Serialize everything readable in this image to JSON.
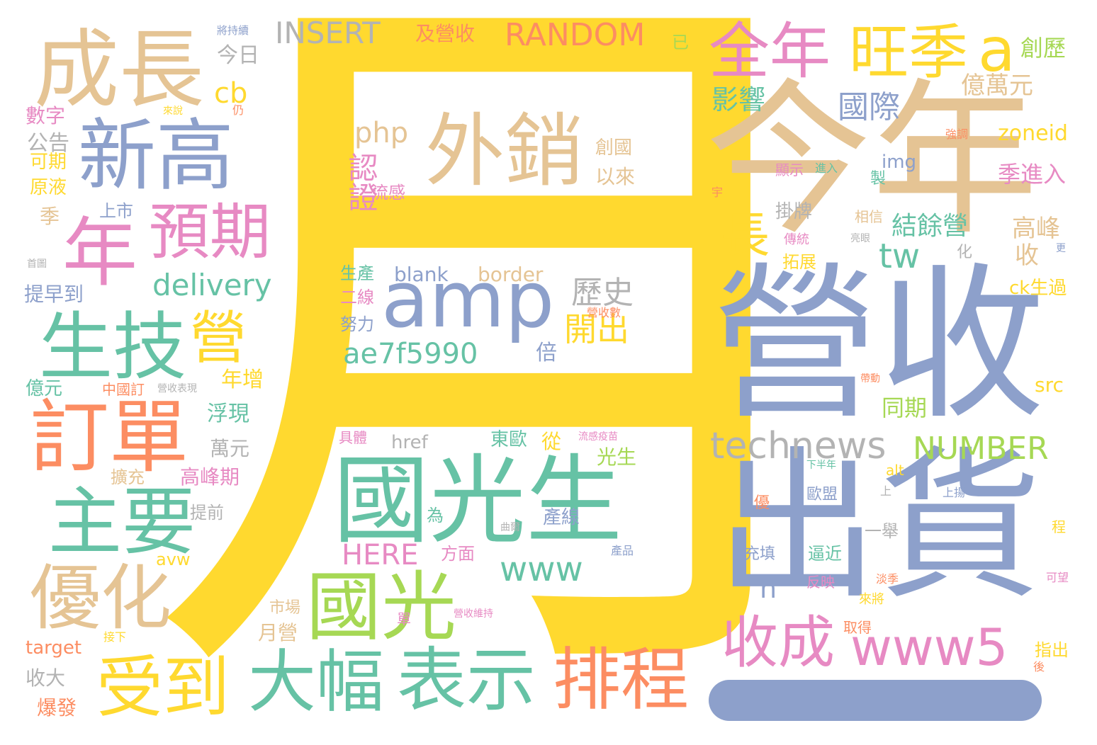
{
  "wordcloud": {
    "palette": {
      "yellow": "#ffd92f",
      "tan": "#e5c494",
      "blue": "#8da0cb",
      "pink": "#e78ac3",
      "green": "#66c2a5",
      "orange": "#fc8d62",
      "lime": "#a6d854",
      "gray": "#b3b3b3"
    },
    "words": [
      {
        "text": "月",
        "color": "yellow"
      },
      {
        "text": "今年",
        "color": "tan"
      },
      {
        "text": "營收",
        "color": "blue"
      },
      {
        "text": "出貨",
        "color": "blue"
      },
      {
        "text": "國光生",
        "color": "green"
      },
      {
        "text": "成長",
        "color": "tan"
      },
      {
        "text": "新高",
        "color": "blue"
      },
      {
        "text": "外銷",
        "color": "tan"
      },
      {
        "text": "amp",
        "color": "blue"
      },
      {
        "text": "國光",
        "color": "lime"
      },
      {
        "text": "表示",
        "color": "green"
      },
      {
        "text": "大幅",
        "color": "green"
      },
      {
        "text": "受到",
        "color": "yellow"
      },
      {
        "text": "排程",
        "color": "orange"
      },
      {
        "text": "訂單",
        "color": "orange"
      },
      {
        "text": "主要",
        "color": "green"
      },
      {
        "text": "優化",
        "color": "tan"
      },
      {
        "text": "生技",
        "color": "green"
      },
      {
        "text": "年",
        "color": "pink"
      },
      {
        "text": "預期",
        "color": "pink"
      },
      {
        "text": "全年",
        "color": "pink"
      },
      {
        "text": "旺季",
        "color": "yellow"
      },
      {
        "text": "a",
        "color": "yellow"
      },
      {
        "text": "收成",
        "color": "pink"
      },
      {
        "text": "www5",
        "color": "pink"
      },
      {
        "text": "technews",
        "color": "gray"
      },
      {
        "text": "NUMBER",
        "color": "lime"
      },
      {
        "text": "RANDOM",
        "color": "orange"
      },
      {
        "text": "INSERT",
        "color": "gray"
      },
      {
        "text": "delivery",
        "color": "green"
      },
      {
        "text": "www",
        "color": "green"
      },
      {
        "text": "ae7f5990",
        "color": "green"
      },
      {
        "text": "HERE",
        "color": "pink"
      },
      {
        "text": "php",
        "color": "tan"
      },
      {
        "text": "國際",
        "color": "blue"
      },
      {
        "text": "tw",
        "color": "green"
      },
      {
        "text": "長",
        "color": "yellow"
      },
      {
        "text": "營",
        "color": "yellow"
      },
      {
        "text": "認證",
        "color": "pink"
      },
      {
        "text": "歷史",
        "color": "gray"
      },
      {
        "text": "開出",
        "color": "yellow"
      },
      {
        "text": "cb",
        "color": "yellow"
      },
      {
        "text": "影響",
        "color": "green"
      },
      {
        "text": "億萬元",
        "color": "tan"
      },
      {
        "text": "結餘營",
        "color": "green"
      },
      {
        "text": "高峰",
        "color": "tan"
      },
      {
        "text": "收",
        "color": "tan"
      },
      {
        "text": "zoneid",
        "color": "yellow"
      },
      {
        "text": "季進入",
        "color": "pink"
      },
      {
        "text": "創歷",
        "color": "lime"
      },
      {
        "text": "n",
        "color": "blue"
      },
      {
        "text": "同期",
        "color": "lime"
      },
      {
        "text": "src",
        "color": "yellow"
      },
      {
        "text": "及營收",
        "color": "orange"
      },
      {
        "text": "今日",
        "color": "gray"
      },
      {
        "text": "將持續",
        "color": "blue"
      },
      {
        "text": "已",
        "color": "lime"
      },
      {
        "text": "數字",
        "color": "pink"
      },
      {
        "text": "公告",
        "color": "gray"
      },
      {
        "text": "可期",
        "color": "yellow"
      },
      {
        "text": "原液",
        "color": "yellow"
      },
      {
        "text": "季",
        "color": "tan"
      },
      {
        "text": "首圖",
        "color": "gray"
      },
      {
        "text": "提早到",
        "color": "blue"
      },
      {
        "text": "上市",
        "color": "blue"
      },
      {
        "text": "年增",
        "color": "yellow"
      },
      {
        "text": "浮現",
        "color": "green"
      },
      {
        "text": "萬元",
        "color": "gray"
      },
      {
        "text": "億元",
        "color": "green"
      },
      {
        "text": "中國訂",
        "color": "orange"
      },
      {
        "text": "營收表現",
        "color": "gray"
      },
      {
        "text": "高峰期",
        "color": "pink"
      },
      {
        "text": "擴充",
        "color": "tan"
      },
      {
        "text": "提前",
        "color": "gray"
      },
      {
        "text": "avw",
        "color": "yellow"
      },
      {
        "text": "target",
        "color": "orange"
      },
      {
        "text": "收大",
        "color": "gray"
      },
      {
        "text": "爆發",
        "color": "orange"
      },
      {
        "text": "接下",
        "color": "yellow"
      },
      {
        "text": "月營",
        "color": "tan"
      },
      {
        "text": "市場",
        "color": "tan"
      },
      {
        "text": "單",
        "color": "pink"
      },
      {
        "text": "營收維持",
        "color": "pink"
      },
      {
        "text": "曲爾",
        "color": "gray"
      },
      {
        "text": "產品",
        "color": "blue"
      },
      {
        "text": "產線",
        "color": "blue"
      },
      {
        "text": "方面",
        "color": "pink"
      },
      {
        "text": "為",
        "color": "green"
      },
      {
        "text": "光生",
        "color": "lime"
      },
      {
        "text": "從",
        "color": "yellow"
      },
      {
        "text": "東歐",
        "color": "green"
      },
      {
        "text": "流感疫苗",
        "color": "pink"
      },
      {
        "text": "具體",
        "color": "pink"
      },
      {
        "text": "href",
        "color": "gray"
      },
      {
        "text": "倍",
        "color": "blue"
      },
      {
        "text": "努力",
        "color": "blue"
      },
      {
        "text": "營收數",
        "color": "orange"
      },
      {
        "text": "二線",
        "color": "pink"
      },
      {
        "text": "生產",
        "color": "green"
      },
      {
        "text": "blank",
        "color": "blue"
      },
      {
        "text": "border",
        "color": "tan"
      },
      {
        "text": "流感",
        "color": "pink"
      },
      {
        "text": "創國",
        "color": "tan"
      },
      {
        "text": "以來",
        "color": "tan"
      },
      {
        "text": "掛牌",
        "color": "gray"
      },
      {
        "text": "傳統",
        "color": "pink"
      },
      {
        "text": "拓展",
        "color": "yellow"
      },
      {
        "text": "img",
        "color": "blue"
      },
      {
        "text": "顯示",
        "color": "pink"
      },
      {
        "text": "進入",
        "color": "green"
      },
      {
        "text": "強調",
        "color": "orange"
      },
      {
        "text": "製",
        "color": "green"
      },
      {
        "text": "相信",
        "color": "tan"
      },
      {
        "text": "亮眼",
        "color": "gray"
      },
      {
        "text": "化",
        "color": "gray"
      },
      {
        "text": "更",
        "color": "blue"
      },
      {
        "text": "ck生過",
        "color": "yellow"
      },
      {
        "text": "宇",
        "color": "orange"
      },
      {
        "text": "仍",
        "color": "orange"
      },
      {
        "text": "來說",
        "color": "yellow"
      },
      {
        "text": "一舉",
        "color": "gray"
      },
      {
        "text": "逼近",
        "color": "green"
      },
      {
        "text": "充填",
        "color": "blue"
      },
      {
        "text": "歐盟",
        "color": "blue"
      },
      {
        "text": "反映",
        "color": "pink"
      },
      {
        "text": "來將",
        "color": "yellow"
      },
      {
        "text": "淡季",
        "color": "orange"
      },
      {
        "text": "取得",
        "color": "orange"
      },
      {
        "text": "alt",
        "color": "yellow"
      },
      {
        "text": "下半年",
        "color": "green"
      },
      {
        "text": "上",
        "color": "gray"
      },
      {
        "text": "上揚",
        "color": "blue"
      },
      {
        "text": "優",
        "color": "orange"
      },
      {
        "text": "程",
        "color": "yellow"
      },
      {
        "text": "可望",
        "color": "pink"
      },
      {
        "text": "指出",
        "color": "yellow"
      },
      {
        "text": "後",
        "color": "orange"
      },
      {
        "text": "帶動",
        "color": "orange"
      }
    ]
  }
}
